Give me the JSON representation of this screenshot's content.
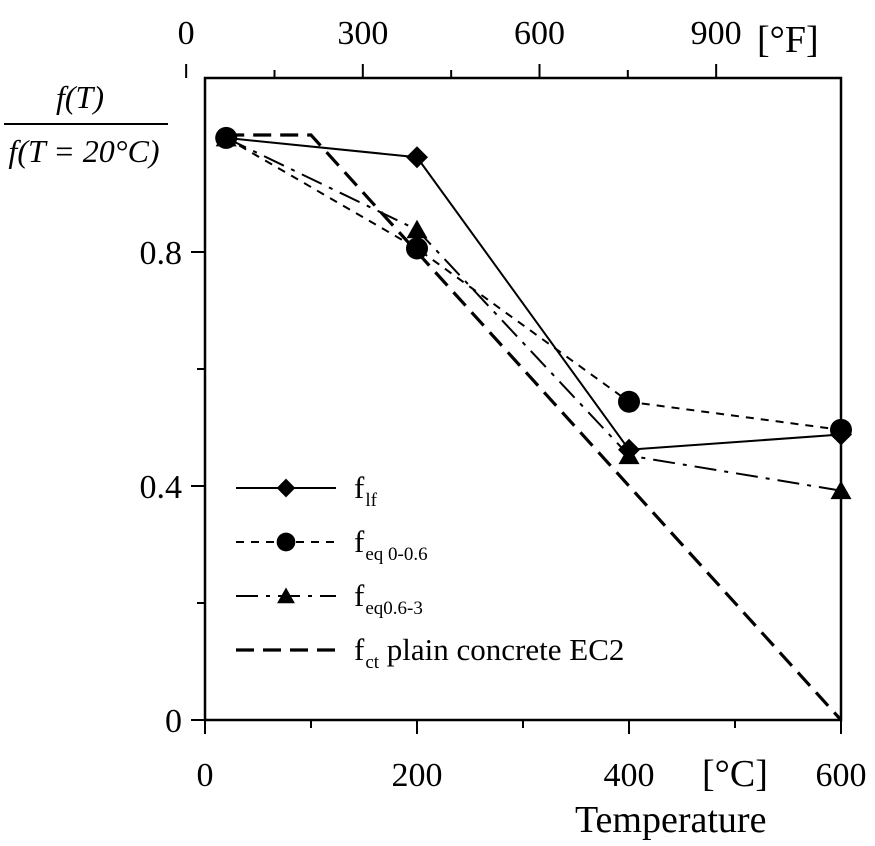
{
  "chart_data": {
    "type": "line",
    "title": "",
    "xlabel": "Temperature",
    "x_unit": "[°C]",
    "x_top_unit": "[°F]",
    "ylabel_numerator": "f(T)",
    "ylabel_denominator": "f(T = 20°C)",
    "xlim": [
      0,
      600
    ],
    "ylim": [
      0,
      1.0
    ],
    "x_ticks": [
      0,
      200,
      400,
      600
    ],
    "x_tick_labels": [
      "0",
      "200",
      "400",
      "600"
    ],
    "x_top_ticks": [
      0,
      300,
      600,
      900
    ],
    "x_top_tick_labels": [
      "0",
      "300",
      "600",
      "900"
    ],
    "y_ticks": [
      0,
      0.4,
      0.8
    ],
    "y_tick_labels": [
      "0",
      "0.4",
      "0.8"
    ],
    "grid": false,
    "legend_position": "bottom-left",
    "series": [
      {
        "label_main": "f",
        "label_sub": "lf",
        "label_tail": "",
        "marker": "diamond",
        "line_style": "solid",
        "x": [
          20,
          200,
          400,
          600
        ],
        "y": [
          0.995,
          0.962,
          0.462,
          0.488
        ]
      },
      {
        "label_main": "f",
        "label_sub": "eq 0-0.6",
        "label_tail": "",
        "marker": "circle",
        "line_style": "short-dash",
        "x": [
          20,
          200,
          400,
          600
        ],
        "y": [
          0.995,
          0.806,
          0.544,
          0.496
        ]
      },
      {
        "label_main": "f",
        "label_sub": "eq0.6-3",
        "label_tail": "",
        "marker": "triangle",
        "line_style": "dash-dot",
        "x": [
          20,
          200,
          400,
          600
        ],
        "y": [
          0.995,
          0.838,
          0.452,
          0.392
        ]
      },
      {
        "label_main": "f",
        "label_sub": "ct",
        "label_tail": " plain concrete EC2",
        "marker": "none",
        "line_style": "long-dash",
        "x": [
          20,
          100,
          600
        ],
        "y": [
          1.0,
          1.0,
          0.0
        ]
      }
    ]
  }
}
